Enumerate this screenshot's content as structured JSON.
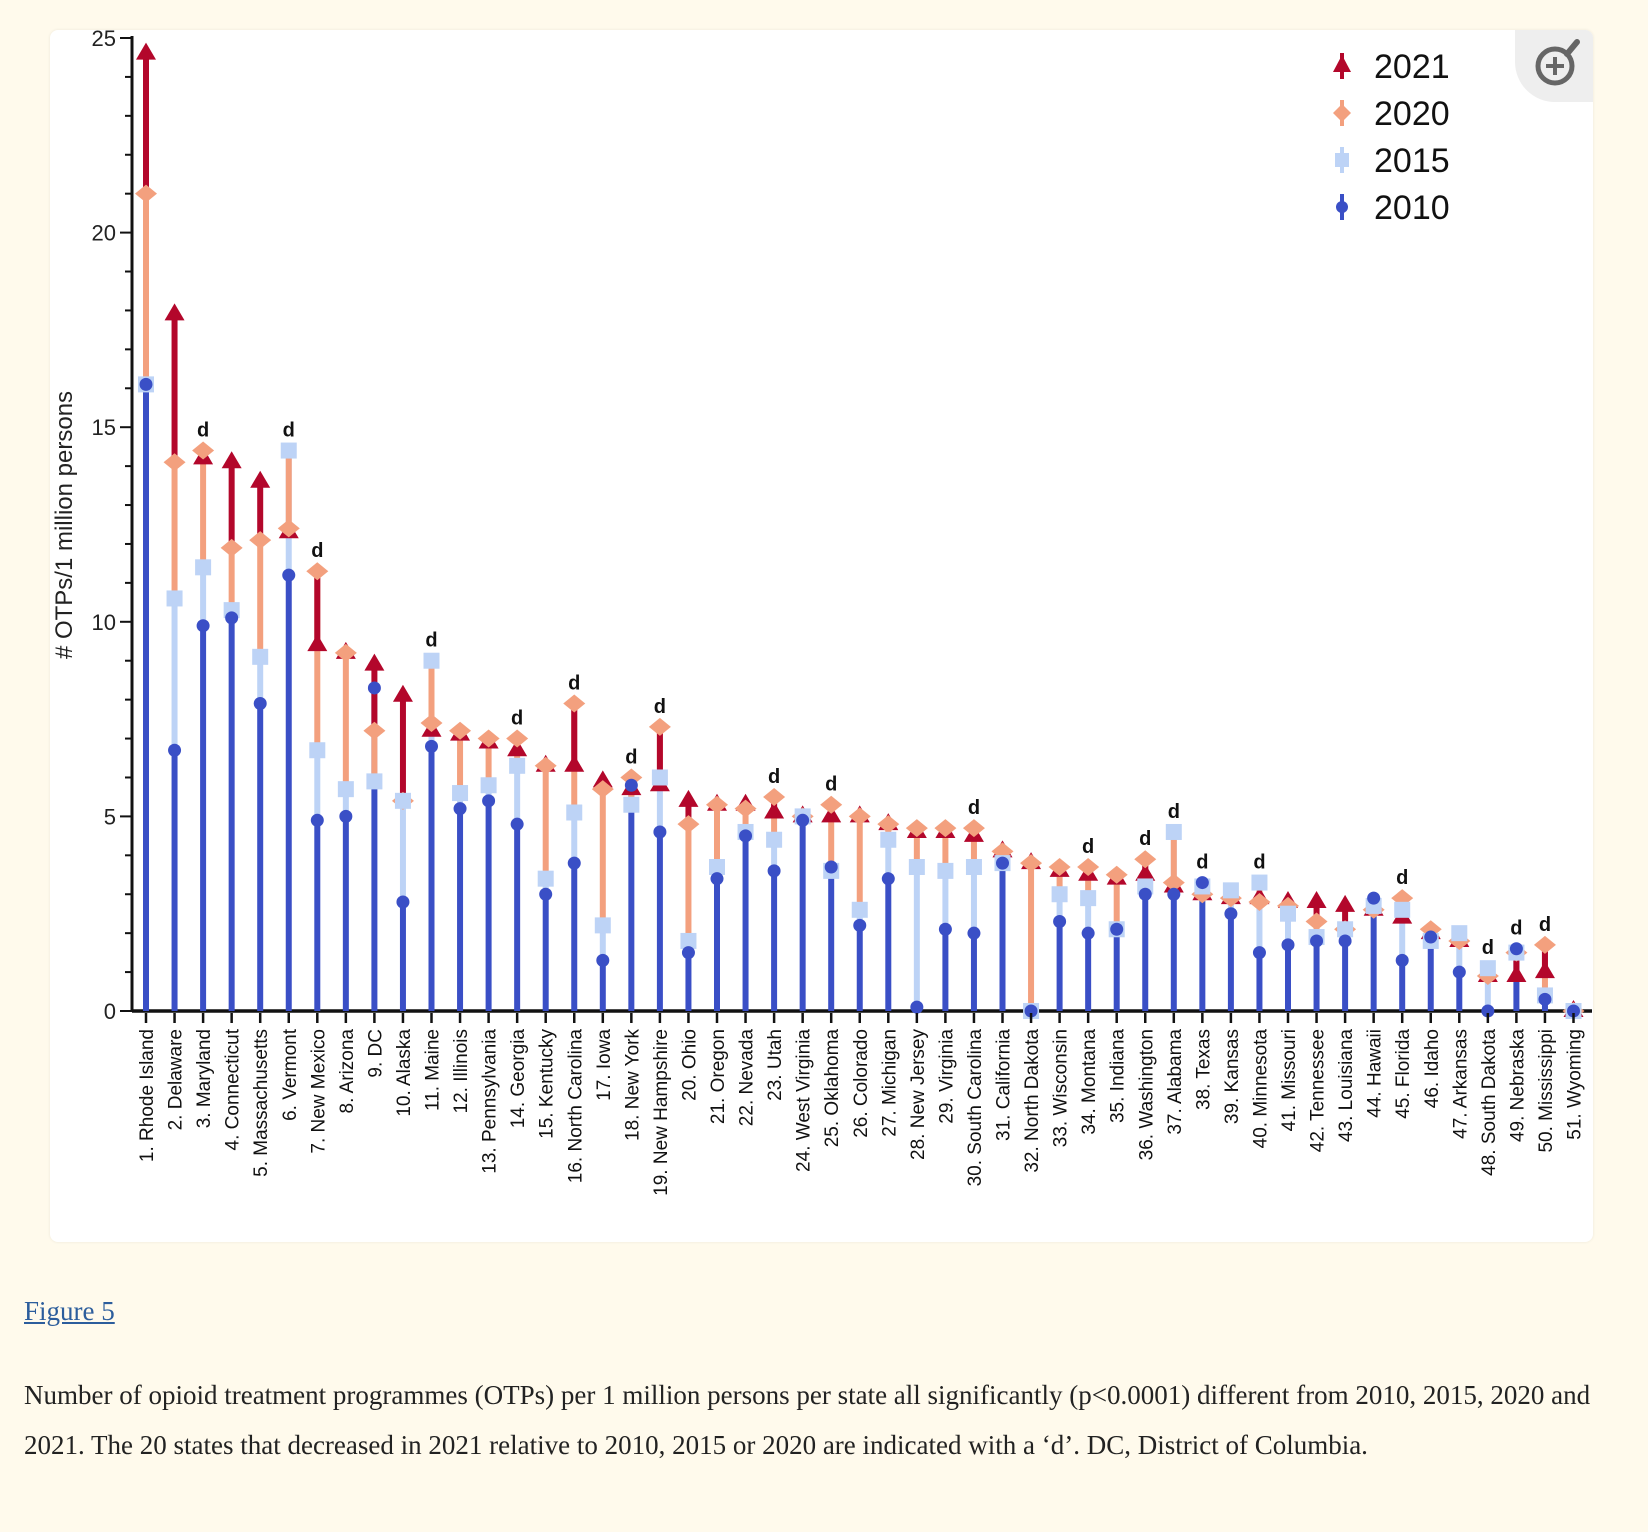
{
  "figure_link": "Figure 5",
  "caption": "Number of opioid treatment programmes (OTPs) per 1 million persons per state all significantly (p<0.0001) different from 2010, 2015, 2020 and 2021. The 20 states that decreased in 2021 relative to 2010, 2015 or 2020 are indicated with a ‘d’. DC, District of Columbia.",
  "zoom_icon": "zoom-in-magnifier-icon",
  "colors": {
    "y2021": "#b3072b",
    "y2020": "#f3a07e",
    "y2015": "#bdd3f6",
    "y2010": "#3a4fc6"
  },
  "chart_data": {
    "type": "dot-range",
    "ylabel": "# OTPs/1 million persons",
    "xlabel": "",
    "ylim": [
      0,
      25
    ],
    "yticks": [
      0,
      5,
      10,
      15,
      20,
      25
    ],
    "legend_position": "top-right",
    "decrease_marker": "d",
    "series_names": [
      "2021",
      "2020",
      "2015",
      "2010"
    ],
    "categories": [
      "1. Rhode Island",
      "2. Delaware",
      "3. Maryland",
      "4. Connecticut",
      "5. Massachusetts",
      "6. Vermont",
      "7. New Mexico",
      "8. Arizona",
      "9. DC",
      "10. Alaska",
      "11. Maine",
      "12. Illinois",
      "13. Pennsylvania",
      "14. Georgia",
      "15. Kentucky",
      "16. North Carolina",
      "17. Iowa",
      "18. New York",
      "19. New Hampshire",
      "20. Ohio",
      "21. Oregon",
      "22. Nevada",
      "23. Utah",
      "24. West Virginia",
      "25. Oklahoma",
      "26. Colorado",
      "27. Michigan",
      "28. New Jersey",
      "29. Virginia",
      "30. South Carolina",
      "31. California",
      "32. North Dakota",
      "33. Wisconsin",
      "34. Montana",
      "35. Indiana",
      "36. Washington",
      "37. Alabama",
      "38. Texas",
      "39. Kansas",
      "40. Minnesota",
      "41. Missouri",
      "42. Tennessee",
      "43. Louisiana",
      "44. Hawaii",
      "45. Florida",
      "46. Idaho",
      "47. Arkansas",
      "48. South Dakota",
      "49. Nebraska",
      "50. Mississippi",
      "51. Wyoming"
    ],
    "series": [
      {
        "name": "2010",
        "values": [
          16.1,
          6.7,
          9.9,
          10.1,
          7.9,
          11.2,
          4.9,
          5.0,
          8.3,
          2.8,
          6.8,
          5.2,
          5.4,
          4.8,
          3.0,
          3.8,
          1.3,
          5.8,
          4.6,
          1.5,
          3.4,
          4.5,
          3.6,
          4.9,
          3.7,
          2.2,
          3.4,
          0.1,
          2.1,
          2.0,
          3.8,
          0.0,
          2.3,
          2.0,
          2.1,
          3.0,
          3.0,
          3.3,
          2.5,
          1.5,
          1.7,
          1.8,
          1.8,
          2.9,
          1.3,
          1.9,
          1.0,
          0.0,
          1.6,
          0.3,
          0.0
        ]
      },
      {
        "name": "2015",
        "values": [
          16.1,
          10.6,
          11.4,
          10.3,
          9.1,
          14.4,
          6.7,
          5.7,
          5.9,
          5.4,
          9.0,
          5.6,
          5.8,
          6.3,
          3.4,
          5.1,
          2.2,
          5.3,
          6.0,
          1.8,
          3.7,
          4.6,
          4.4,
          5.0,
          3.6,
          2.6,
          4.4,
          3.7,
          3.6,
          3.7,
          3.8,
          0.0,
          3.0,
          2.9,
          2.1,
          3.2,
          4.6,
          3.2,
          3.1,
          3.3,
          2.5,
          1.9,
          2.1,
          2.7,
          2.6,
          1.8,
          2.0,
          1.1,
          1.5,
          0.4,
          0.0
        ]
      },
      {
        "name": "2020",
        "values": [
          21.0,
          14.1,
          14.4,
          11.9,
          12.1,
          12.4,
          11.3,
          9.2,
          7.2,
          5.4,
          7.4,
          7.2,
          7.0,
          7.0,
          6.3,
          7.9,
          5.7,
          6.0,
          7.3,
          4.8,
          5.3,
          5.2,
          5.5,
          5.0,
          5.3,
          5.0,
          4.8,
          4.7,
          4.7,
          4.7,
          4.1,
          3.8,
          3.7,
          3.7,
          3.5,
          3.9,
          3.3,
          3.0,
          2.9,
          2.8,
          2.7,
          2.3,
          2.1,
          2.6,
          2.9,
          2.1,
          1.8,
          0.9,
          1.5,
          1.7,
          0.0
        ]
      },
      {
        "name": "2021",
        "values": [
          24.6,
          17.9,
          14.2,
          14.1,
          13.6,
          12.3,
          9.4,
          9.2,
          8.9,
          8.1,
          7.2,
          7.1,
          6.9,
          6.7,
          6.3,
          6.3,
          5.9,
          5.7,
          5.8,
          5.4,
          5.3,
          5.3,
          5.1,
          5.0,
          5.0,
          5.0,
          4.8,
          4.6,
          4.6,
          4.5,
          4.1,
          3.8,
          3.6,
          3.5,
          3.4,
          3.5,
          3.2,
          3.0,
          2.9,
          2.9,
          2.8,
          2.8,
          2.7,
          2.6,
          2.4,
          2.0,
          1.8,
          0.9,
          0.9,
          1.0,
          0.0
        ]
      }
    ],
    "decreased": [
      3,
      6,
      7,
      11,
      14,
      16,
      18,
      19,
      23,
      25,
      30,
      34,
      36,
      37,
      38,
      40,
      45,
      48,
      49,
      50
    ]
  }
}
